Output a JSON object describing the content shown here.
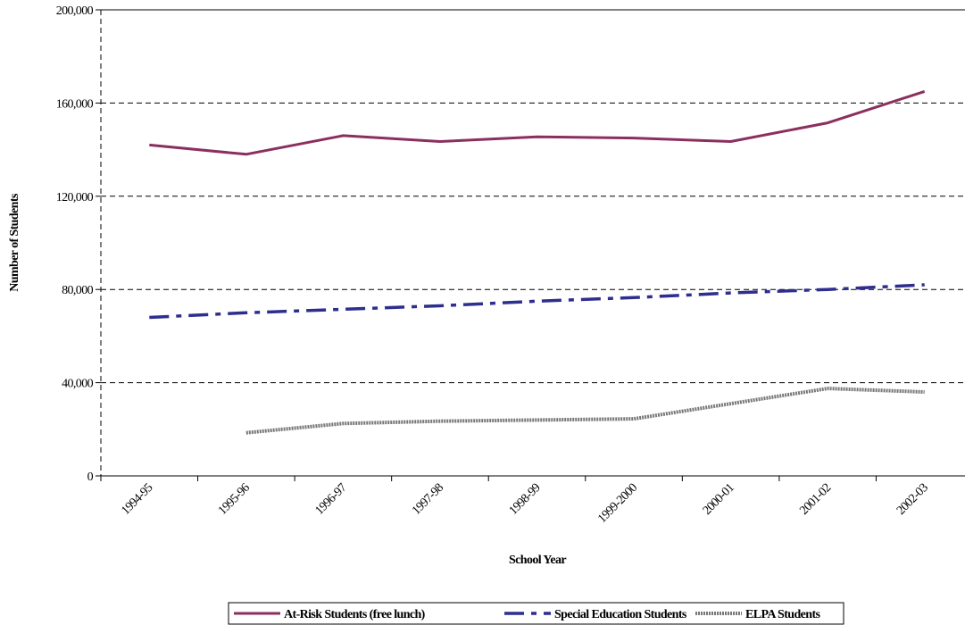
{
  "chart_data": {
    "type": "line",
    "xlabel": "School Year",
    "ylabel": "Number of Students",
    "categories": [
      "1994-95",
      "1995-96",
      "1996-97",
      "1997-98",
      "1998-99",
      "1999-2000",
      "2000-01",
      "2001-02",
      "2002-03"
    ],
    "ylim": [
      0,
      200000
    ],
    "yticks": [
      0,
      40000,
      80000,
      120000,
      160000,
      200000
    ],
    "ytick_labels": [
      "0",
      "40,000",
      "80,000",
      "120,000",
      "160,000",
      "200,000"
    ],
    "grid": "horizontal dashed",
    "legend_position": "bottom",
    "series": [
      {
        "name": "At-Risk Students (free lunch)",
        "color": "#8b2f5e",
        "style": "solid",
        "values": [
          142000,
          138000,
          146000,
          143500,
          145500,
          145000,
          143500,
          151500,
          165000
        ]
      },
      {
        "name": "Special Education Students",
        "color": "#2e2e8f",
        "style": "dash-dot",
        "values": [
          68000,
          70000,
          71500,
          73000,
          75000,
          76500,
          78500,
          80000,
          82000
        ]
      },
      {
        "name": "ELPA Students",
        "color": "#777777",
        "style": "dotted-thick",
        "values": [
          null,
          18500,
          22500,
          23500,
          24000,
          24500,
          31000,
          37500,
          36000
        ]
      }
    ]
  }
}
